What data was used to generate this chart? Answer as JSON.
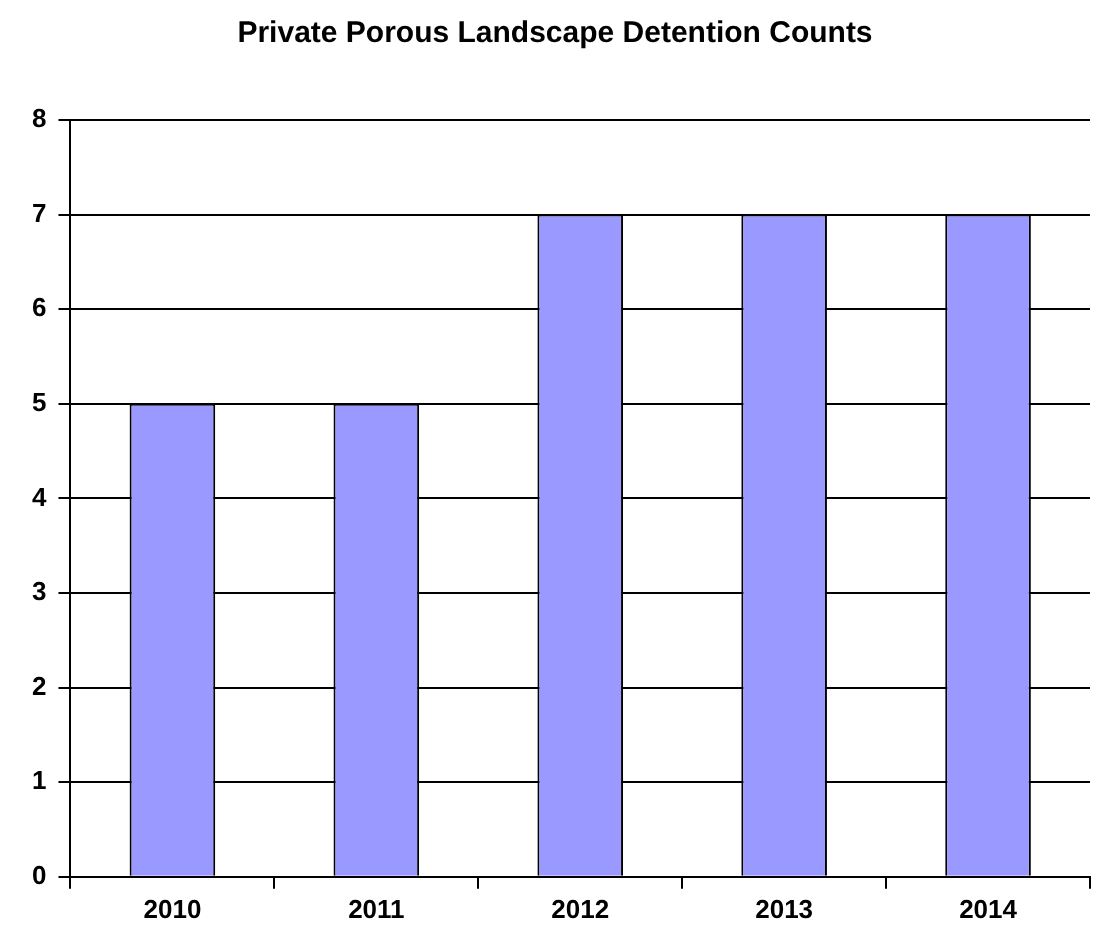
{
  "chart_data": {
    "type": "bar",
    "title": "Private Porous Landscape Detention Counts",
    "categories": [
      "2010",
      "2011",
      "2012",
      "2013",
      "2014"
    ],
    "values": [
      5,
      5,
      7,
      7,
      7
    ],
    "color": "#9999ff",
    "ylim": [
      0,
      8
    ],
    "yticks": [
      0,
      1,
      2,
      3,
      4,
      5,
      6,
      7,
      8
    ],
    "grid": "y",
    "legend": false
  }
}
